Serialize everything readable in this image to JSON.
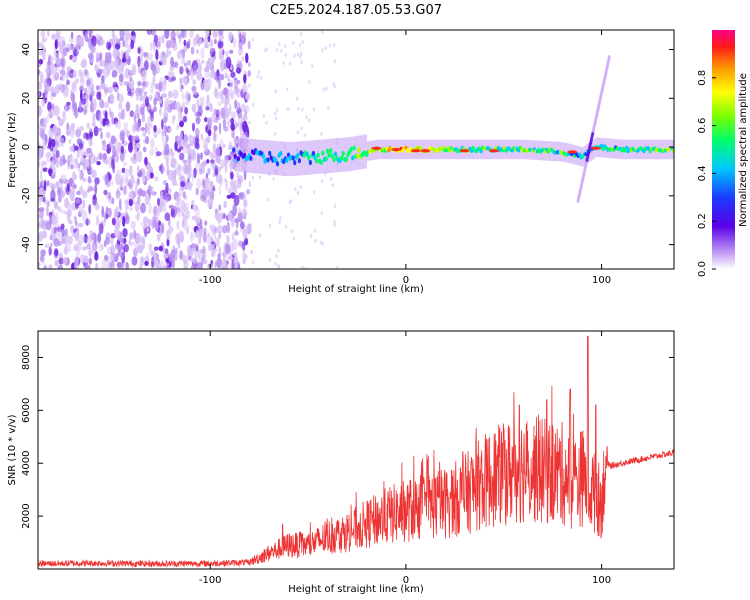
{
  "title": "C2E5.2024.187.05.53.G07",
  "colors": {
    "snr_line": "#ee3333",
    "noise_light": "#d9c2f5",
    "noise_mid": "#b58cf0",
    "noise_dark": "#6a1fe0",
    "axis": "#000000"
  },
  "colorbar": {
    "label": "Normalized spectral amplitude",
    "ticks": [
      "0.0",
      "0.2",
      "0.4",
      "0.6",
      "0.8"
    ],
    "tick_values": [
      0.0,
      0.2,
      0.4,
      0.6,
      0.8
    ],
    "range": [
      0,
      1
    ],
    "colormap": "rainbow (white-violet-blue-cyan-green-yellow-red-magenta)"
  },
  "chart_data": [
    {
      "type": "heatmap",
      "title": "C2E5.2024.187.05.53.G07",
      "xlabel": "Height of straight line (km)",
      "ylabel": "Frequency (Hz)",
      "xlim": [
        -188,
        137
      ],
      "ylim": [
        -50,
        48
      ],
      "x_ticks": [
        -100,
        0,
        100
      ],
      "x_tick_labels": [
        "-100",
        "0",
        "100"
      ],
      "y_ticks": [
        -40,
        -20,
        0,
        20,
        40
      ],
      "y_tick_labels": [
        "-40",
        "-20",
        "0",
        "20",
        "40"
      ],
      "grid": false,
      "signal_ridge": {
        "x": [
          -88,
          -75,
          -60,
          -45,
          -30,
          -15,
          0,
          20,
          40,
          60,
          80,
          90,
          97,
          110,
          137
        ],
        "frequency": [
          -3,
          -4,
          -5,
          -4,
          -3,
          -1,
          -1,
          -1,
          -1,
          -1,
          -2,
          -4,
          0,
          -1,
          -1
        ],
        "amplitude": [
          0.25,
          0.3,
          0.35,
          0.45,
          0.55,
          0.7,
          0.95,
          0.6,
          0.55,
          0.55,
          0.5,
          0.35,
          0.5,
          0.5,
          0.6
        ]
      },
      "noise_region_x": [
        -188,
        -80
      ],
      "spike_near_x": 97,
      "spike_frequency_range": [
        -22,
        37
      ]
    },
    {
      "type": "line",
      "xlabel": "Height of straight line (km)",
      "ylabel": "SNR (10 * v/v)",
      "xlim": [
        -188,
        137
      ],
      "ylim": [
        0,
        9000
      ],
      "x_ticks": [
        -100,
        0,
        100
      ],
      "x_tick_labels": [
        "-100",
        "0",
        "100"
      ],
      "y_ticks": [
        2000,
        4000,
        6000,
        8000
      ],
      "y_tick_labels": [
        "2000",
        "4000",
        "6000",
        "8000"
      ],
      "grid": false,
      "series": [
        {
          "x": [
            -188,
            -160,
            -130,
            -100,
            -80,
            -70,
            -60,
            -50,
            -40,
            -30,
            -20,
            -10,
            0,
            10,
            20,
            30,
            40,
            50,
            60,
            70,
            80,
            85,
            90,
            95,
            100,
            102,
            105,
            110,
            120,
            130,
            137
          ],
          "values": [
            200,
            220,
            200,
            210,
            250,
            600,
            900,
            900,
            1200,
            1400,
            1700,
            2000,
            2200,
            2400,
            2500,
            2800,
            3300,
            3600,
            3800,
            3700,
            3600,
            3200,
            3500,
            3000,
            2500,
            4000,
            3900,
            4000,
            4150,
            4300,
            4400
          ],
          "peaks": [
            {
              "x": -63,
              "values": 1700
            },
            {
              "x": -18,
              "values": 2600
            },
            {
              "x": 10,
              "values": 2900
            },
            {
              "x": 50,
              "values": 5300
            },
            {
              "x": 58,
              "values": 6200
            },
            {
              "x": 72,
              "values": 6400
            },
            {
              "x": 84,
              "values": 6800
            },
            {
              "x": 93,
              "values": 8800
            },
            {
              "x": 97,
              "values": 6200
            }
          ]
        }
      ]
    }
  ]
}
